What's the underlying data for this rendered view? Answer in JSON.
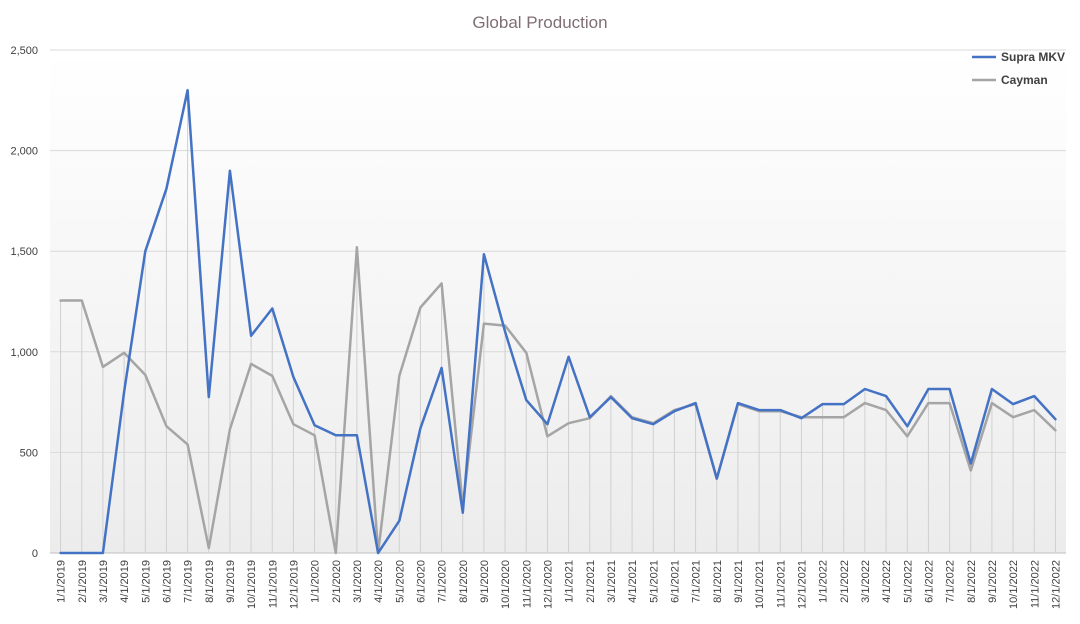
{
  "chart_data": {
    "type": "line",
    "title": "Global Production",
    "xlabel": "",
    "ylabel": "",
    "ylim": [
      0,
      2500
    ],
    "yticks": [
      0,
      500,
      1000,
      1500,
      2000,
      2500
    ],
    "ytick_labels": [
      "0",
      "500",
      "1,000",
      "1,500",
      "2,000",
      "2,500"
    ],
    "grid": true,
    "drop_lines": true,
    "legend_position": "top-right",
    "categories": [
      "1/1/2019",
      "2/1/2019",
      "3/1/2019",
      "4/1/2019",
      "5/1/2019",
      "6/1/2019",
      "7/1/2019",
      "8/1/2019",
      "9/1/2019",
      "10/1/2019",
      "11/1/2019",
      "12/1/2019",
      "1/1/2020",
      "2/1/2020",
      "3/1/2020",
      "4/1/2020",
      "5/1/2020",
      "6/1/2020",
      "7/1/2020",
      "8/1/2020",
      "9/1/2020",
      "10/1/2020",
      "11/1/2020",
      "12/1/2020",
      "1/1/2021",
      "2/1/2021",
      "3/1/2021",
      "4/1/2021",
      "5/1/2021",
      "6/1/2021",
      "7/1/2021",
      "8/1/2021",
      "9/1/2021",
      "10/1/2021",
      "11/1/2021",
      "12/1/2021",
      "1/1/2022",
      "2/1/2022",
      "3/1/2022",
      "4/1/2022",
      "5/1/2022",
      "6/1/2022",
      "7/1/2022",
      "8/1/2022",
      "9/1/2022",
      "10/1/2022",
      "11/1/2022",
      "12/1/2022"
    ],
    "series": [
      {
        "name": "Supra MKV",
        "color": "#4472c4",
        "values": [
          0,
          0,
          0,
          800,
          1500,
          1810,
          2300,
          775,
          1900,
          1080,
          1215,
          875,
          635,
          585,
          585,
          0,
          160,
          620,
          920,
          200,
          1485,
          1100,
          760,
          640,
          975,
          675,
          775,
          670,
          640,
          705,
          745,
          370,
          745,
          710,
          710,
          670,
          740,
          740,
          815,
          780,
          630,
          815,
          815,
          445,
          815,
          740,
          780,
          665
        ]
      },
      {
        "name": "Cayman",
        "color": "#a5a5a5",
        "values": [
          1255,
          1255,
          925,
          995,
          885,
          630,
          540,
          25,
          615,
          940,
          880,
          640,
          585,
          0,
          1520,
          0,
          880,
          1220,
          1340,
          230,
          1140,
          1130,
          995,
          580,
          645,
          670,
          780,
          675,
          645,
          710,
          740,
          370,
          740,
          705,
          705,
          675,
          675,
          675,
          745,
          710,
          580,
          745,
          745,
          410,
          745,
          675,
          710,
          610
        ]
      }
    ]
  }
}
